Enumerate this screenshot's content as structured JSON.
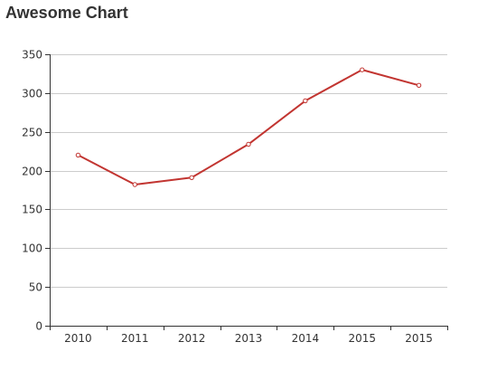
{
  "chart_data": {
    "type": "line",
    "title": "Awesome Chart",
    "xlabel": "",
    "ylabel": "",
    "categories": [
      "2010",
      "2011",
      "2012",
      "2013",
      "2014",
      "2015",
      "2015"
    ],
    "series": [
      {
        "values": [
          220,
          182,
          191,
          234,
          290,
          330,
          310
        ],
        "color": "#c23531"
      }
    ],
    "ylim": [
      0,
      350
    ],
    "yticks": [
      0,
      50,
      100,
      150,
      200,
      250,
      300,
      350
    ],
    "grid": true,
    "marker": "hollow-circle"
  }
}
